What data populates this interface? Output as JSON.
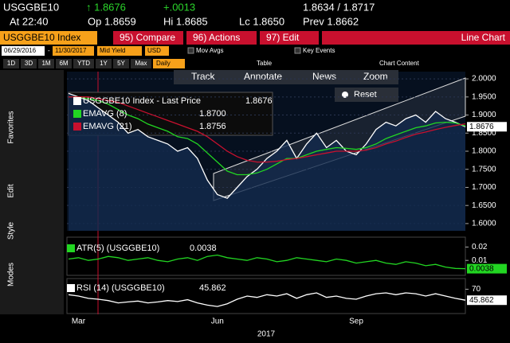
{
  "ui": {
    "ticker": "USGGBE10",
    "last": "↑ 1.8676",
    "change": "+.0013",
    "bid_ask": "1.8634 / 1.8717",
    "time": "At 22:40",
    "open": "Op 1.8659",
    "high": "Hi 1.8685",
    "low": "Lc 1.8650",
    "prev": "Prev 1.8662",
    "security": "USGGBE10 Index",
    "menus": [
      "95) Compare",
      "96) Actions",
      "97) Edit"
    ],
    "view": "Line Chart",
    "start_date": "06/29/2016",
    "dash": "-",
    "end_date": "11/30/2017",
    "field": "Mid Yield",
    "currency": "USD",
    "overlays": [
      "Mov Avgs",
      "Key Events"
    ],
    "periods": [
      "1D",
      "3D",
      "1M",
      "6M",
      "YTD",
      "1Y",
      "5Y",
      "Max"
    ],
    "frequency": "Daily",
    "table": "Table",
    "chart_content": "Chart Content",
    "tools": [
      "Track",
      "Annotate",
      "News",
      "Zoom"
    ],
    "reset": "Reset",
    "side_tabs": [
      "Favorites",
      "Edit",
      "Style",
      "Modes"
    ]
  },
  "chart_data": [
    {
      "type": "line",
      "xlabel": "2017",
      "categories": [
        null,
        "Mar",
        null,
        null,
        null,
        null,
        null,
        null,
        null,
        null,
        null,
        null,
        null,
        null,
        null,
        "Jun",
        null,
        null,
        null,
        null,
        null,
        null,
        null,
        null,
        null,
        null,
        null,
        null,
        null,
        "Sep",
        null,
        null,
        null,
        null,
        null,
        null,
        null,
        null,
        null,
        null,
        null
      ],
      "ylim": [
        1.58,
        2.02
      ],
      "yticks": [
        {
          "value": 1.6,
          "label": "1.6000"
        },
        {
          "value": 1.65,
          "label": "1.6500"
        },
        {
          "value": 1.7,
          "label": "1.7000"
        },
        {
          "value": 1.75,
          "label": "1.7500"
        },
        {
          "value": 1.8,
          "label": "1.8000"
        },
        {
          "value": 1.85,
          "label": "1.8500"
        },
        {
          "value": 1.9,
          "label": "1.9000"
        },
        {
          "value": 1.95,
          "label": "1.9500"
        },
        {
          "value": 2.0,
          "label": "2.0000"
        }
      ],
      "grid": true,
      "last_label": "1.8676",
      "series": [
        {
          "name": "USGGBE10 Index - Last Price",
          "legend_value": "1.8676",
          "color": "#ffffff",
          "values": [
            1.96,
            1.95,
            1.94,
            1.92,
            1.9,
            1.88,
            1.85,
            1.86,
            1.84,
            1.83,
            1.82,
            1.8,
            1.81,
            1.78,
            1.72,
            1.68,
            1.67,
            1.7,
            1.73,
            1.75,
            1.78,
            1.8,
            1.83,
            1.78,
            1.82,
            1.85,
            1.81,
            1.83,
            1.8,
            1.79,
            1.82,
            1.86,
            1.88,
            1.87,
            1.89,
            1.9,
            1.88,
            1.91,
            1.89,
            1.88,
            1.8676
          ]
        },
        {
          "name": "EMAVG (8)",
          "legend_value": "1.8700",
          "color": "#22d622",
          "values": [
            1.95,
            1.95,
            1.945,
            1.94,
            1.93,
            1.915,
            1.9,
            1.89,
            1.875,
            1.865,
            1.855,
            1.84,
            1.835,
            1.82,
            1.795,
            1.77,
            1.745,
            1.735,
            1.735,
            1.74,
            1.75,
            1.765,
            1.78,
            1.78,
            1.79,
            1.8,
            1.805,
            1.81,
            1.808,
            1.805,
            1.81,
            1.82,
            1.835,
            1.845,
            1.855,
            1.865,
            1.87,
            1.878,
            1.88,
            1.878,
            1.87
          ]
        },
        {
          "name": "EMAVG (21)",
          "legend_value": "1.8756",
          "color": "#c8102e",
          "values": [
            1.95,
            1.95,
            1.95,
            1.945,
            1.94,
            1.935,
            1.925,
            1.915,
            1.905,
            1.895,
            1.885,
            1.875,
            1.865,
            1.855,
            1.84,
            1.82,
            1.8,
            1.785,
            1.775,
            1.77,
            1.77,
            1.772,
            1.777,
            1.78,
            1.785,
            1.79,
            1.795,
            1.8,
            1.8,
            1.8,
            1.803,
            1.81,
            1.82,
            1.828,
            1.838,
            1.847,
            1.853,
            1.86,
            1.866,
            1.871,
            1.8756
          ]
        }
      ]
    },
    {
      "type": "line",
      "ylim": [
        0,
        0.025
      ],
      "yticks": [
        0.01,
        0.02
      ],
      "last_label": "0.0038",
      "series": [
        {
          "name": "ATR(5) (USGGBE10)",
          "legend_value": "0.0038",
          "color": "#22d622",
          "values": [
            0.011,
            0.012,
            0.01,
            0.011,
            0.013,
            0.012,
            0.01,
            0.011,
            0.012,
            0.01,
            0.009,
            0.011,
            0.012,
            0.01,
            0.013,
            0.014,
            0.012,
            0.011,
            0.01,
            0.012,
            0.011,
            0.009,
            0.01,
            0.012,
            0.011,
            0.01,
            0.009,
            0.011,
            0.01,
            0.008,
            0.009,
            0.01,
            0.008,
            0.007,
            0.009,
            0.008,
            0.006,
            0.007,
            0.005,
            0.004,
            0.0038
          ]
        }
      ]
    },
    {
      "type": "line",
      "ylim": [
        20,
        90
      ],
      "yticks": [
        70
      ],
      "last_label": "45.862",
      "series": [
        {
          "name": "RSI (14) (USGGBE10)",
          "legend_value": "45.862",
          "color": "#ffffff",
          "values": [
            58,
            55,
            50,
            48,
            45,
            40,
            42,
            44,
            40,
            42,
            45,
            43,
            47,
            40,
            35,
            32,
            38,
            48,
            55,
            52,
            58,
            55,
            60,
            50,
            58,
            62,
            52,
            55,
            50,
            48,
            55,
            60,
            62,
            58,
            62,
            60,
            55,
            60,
            55,
            50,
            45.862
          ]
        }
      ]
    }
  ]
}
